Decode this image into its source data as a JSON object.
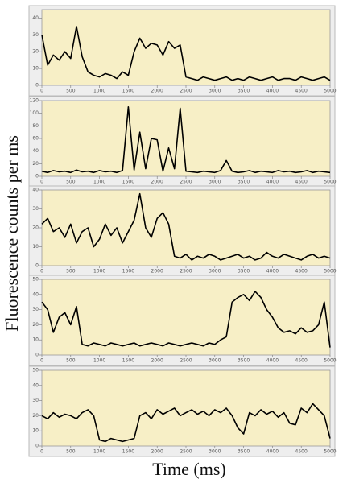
{
  "ylabel": "Fluorescence counts per ms",
  "xlabel": "Time (ms)",
  "chart_data": [
    {
      "type": "line",
      "color": "#000000",
      "background": "#f7efc6",
      "xlim": [
        0,
        5000
      ],
      "ylim": [
        0,
        45
      ],
      "xticks": [
        0,
        500,
        1000,
        1500,
        2000,
        2500,
        3000,
        3500,
        4000,
        4500,
        5000
      ],
      "yticks": [
        0,
        10,
        20,
        30,
        40
      ],
      "x": [
        0,
        100,
        200,
        300,
        400,
        500,
        600,
        700,
        800,
        900,
        1000,
        1100,
        1200,
        1300,
        1400,
        1500,
        1600,
        1700,
        1800,
        1900,
        2000,
        2100,
        2200,
        2300,
        2400,
        2500,
        2600,
        2700,
        2800,
        2900,
        3000,
        3100,
        3200,
        3300,
        3400,
        3500,
        3600,
        3700,
        3800,
        3900,
        4000,
        4100,
        4200,
        4300,
        4400,
        4500,
        4600,
        4700,
        4800,
        4900,
        5000
      ],
      "values": [
        30,
        12,
        18,
        15,
        20,
        16,
        35,
        17,
        8,
        6,
        5,
        7,
        6,
        4,
        8,
        6,
        20,
        28,
        22,
        25,
        24,
        18,
        26,
        22,
        24,
        5,
        4,
        3,
        5,
        4,
        3,
        4,
        5,
        3,
        4,
        3,
        5,
        4,
        3,
        4,
        5,
        3,
        4,
        4,
        3,
        5,
        4,
        3,
        4,
        5,
        3
      ]
    },
    {
      "type": "line",
      "color": "#000000",
      "background": "#f7efc6",
      "xlim": [
        0,
        5000
      ],
      "ylim": [
        0,
        120
      ],
      "xticks": [
        0,
        500,
        1000,
        1500,
        2000,
        2500,
        3000,
        3500,
        4000,
        4500,
        5000
      ],
      "yticks": [
        0,
        20,
        40,
        60,
        80,
        100,
        120
      ],
      "x": [
        0,
        100,
        200,
        300,
        400,
        500,
        600,
        700,
        800,
        900,
        1000,
        1100,
        1200,
        1300,
        1400,
        1500,
        1600,
        1700,
        1800,
        1900,
        2000,
        2100,
        2200,
        2300,
        2400,
        2500,
        2600,
        2700,
        2800,
        2900,
        3000,
        3100,
        3200,
        3300,
        3400,
        3500,
        3600,
        3700,
        3800,
        3900,
        4000,
        4100,
        4200,
        4300,
        4400,
        4500,
        4600,
        4700,
        4800,
        4900,
        5000
      ],
      "values": [
        8,
        6,
        9,
        7,
        8,
        6,
        10,
        7,
        8,
        6,
        9,
        7,
        8,
        6,
        9,
        110,
        10,
        70,
        12,
        60,
        58,
        8,
        45,
        12,
        108,
        8,
        7,
        6,
        8,
        7,
        6,
        9,
        25,
        8,
        6,
        7,
        9,
        6,
        8,
        7,
        6,
        9,
        7,
        8,
        6,
        7,
        9,
        6,
        8,
        7,
        6
      ]
    },
    {
      "type": "line",
      "color": "#000000",
      "background": "#f7efc6",
      "xlim": [
        0,
        5000
      ],
      "ylim": [
        0,
        40
      ],
      "xticks": [
        0,
        500,
        1000,
        1500,
        2000,
        2500,
        3000,
        3500,
        4000,
        4500,
        5000
      ],
      "yticks": [
        0,
        10,
        20,
        30,
        40
      ],
      "x": [
        0,
        100,
        200,
        300,
        400,
        500,
        600,
        700,
        800,
        900,
        1000,
        1100,
        1200,
        1300,
        1400,
        1500,
        1600,
        1700,
        1800,
        1900,
        2000,
        2100,
        2200,
        2300,
        2400,
        2500,
        2600,
        2700,
        2800,
        2900,
        3000,
        3100,
        3200,
        3300,
        3400,
        3500,
        3600,
        3700,
        3800,
        3900,
        4000,
        4100,
        4200,
        4300,
        4400,
        4500,
        4600,
        4700,
        4800,
        4900,
        5000
      ],
      "values": [
        22,
        25,
        18,
        20,
        15,
        22,
        12,
        18,
        20,
        10,
        14,
        22,
        16,
        20,
        12,
        18,
        24,
        38,
        20,
        15,
        25,
        28,
        22,
        5,
        4,
        6,
        3,
        5,
        4,
        6,
        5,
        3,
        4,
        5,
        6,
        4,
        5,
        3,
        4,
        7,
        5,
        4,
        6,
        5,
        4,
        3,
        5,
        6,
        4,
        5,
        4
      ]
    },
    {
      "type": "line",
      "color": "#000000",
      "background": "#f7efc6",
      "xlim": [
        0,
        5000
      ],
      "ylim": [
        0,
        50
      ],
      "xticks": [
        0,
        500,
        1000,
        1500,
        2000,
        2500,
        3000,
        3500,
        4000,
        4500,
        5000
      ],
      "yticks": [
        0,
        10,
        20,
        30,
        40,
        50
      ],
      "x": [
        0,
        100,
        200,
        300,
        400,
        500,
        600,
        700,
        800,
        900,
        1000,
        1100,
        1200,
        1300,
        1400,
        1500,
        1600,
        1700,
        1800,
        1900,
        2000,
        2100,
        2200,
        2300,
        2400,
        2500,
        2600,
        2700,
        2800,
        2900,
        3000,
        3100,
        3200,
        3300,
        3400,
        3500,
        3600,
        3700,
        3800,
        3900,
        4000,
        4100,
        4200,
        4300,
        4400,
        4500,
        4600,
        4700,
        4800,
        4900,
        5000
      ],
      "values": [
        35,
        30,
        15,
        25,
        28,
        20,
        32,
        7,
        6,
        8,
        7,
        6,
        8,
        7,
        6,
        7,
        8,
        6,
        7,
        8,
        7,
        6,
        8,
        7,
        6,
        7,
        8,
        7,
        6,
        8,
        7,
        10,
        12,
        35,
        38,
        40,
        36,
        42,
        38,
        30,
        25,
        18,
        15,
        16,
        14,
        18,
        15,
        16,
        20,
        35,
        5
      ]
    },
    {
      "type": "line",
      "color": "#000000",
      "background": "#f7efc6",
      "xlim": [
        0,
        5000
      ],
      "ylim": [
        0,
        50
      ],
      "xticks": [
        0,
        500,
        1000,
        1500,
        2000,
        2500,
        3000,
        3500,
        4000,
        4500,
        5000
      ],
      "yticks": [
        0,
        10,
        20,
        30,
        40,
        50
      ],
      "x": [
        0,
        100,
        200,
        300,
        400,
        500,
        600,
        700,
        800,
        900,
        1000,
        1100,
        1200,
        1300,
        1400,
        1500,
        1600,
        1700,
        1800,
        1900,
        2000,
        2100,
        2200,
        2300,
        2400,
        2500,
        2600,
        2700,
        2800,
        2900,
        3000,
        3100,
        3200,
        3300,
        3400,
        3500,
        3600,
        3700,
        3800,
        3900,
        4000,
        4100,
        4200,
        4300,
        4400,
        4500,
        4600,
        4700,
        4800,
        4900,
        5000
      ],
      "values": [
        20,
        18,
        22,
        19,
        21,
        20,
        18,
        22,
        24,
        20,
        4,
        3,
        5,
        4,
        3,
        4,
        5,
        20,
        22,
        18,
        24,
        21,
        23,
        25,
        20,
        22,
        24,
        21,
        23,
        20,
        24,
        22,
        25,
        20,
        12,
        8,
        22,
        20,
        24,
        21,
        23,
        19,
        22,
        15,
        14,
        25,
        22,
        28,
        24,
        20,
        5
      ]
    }
  ]
}
